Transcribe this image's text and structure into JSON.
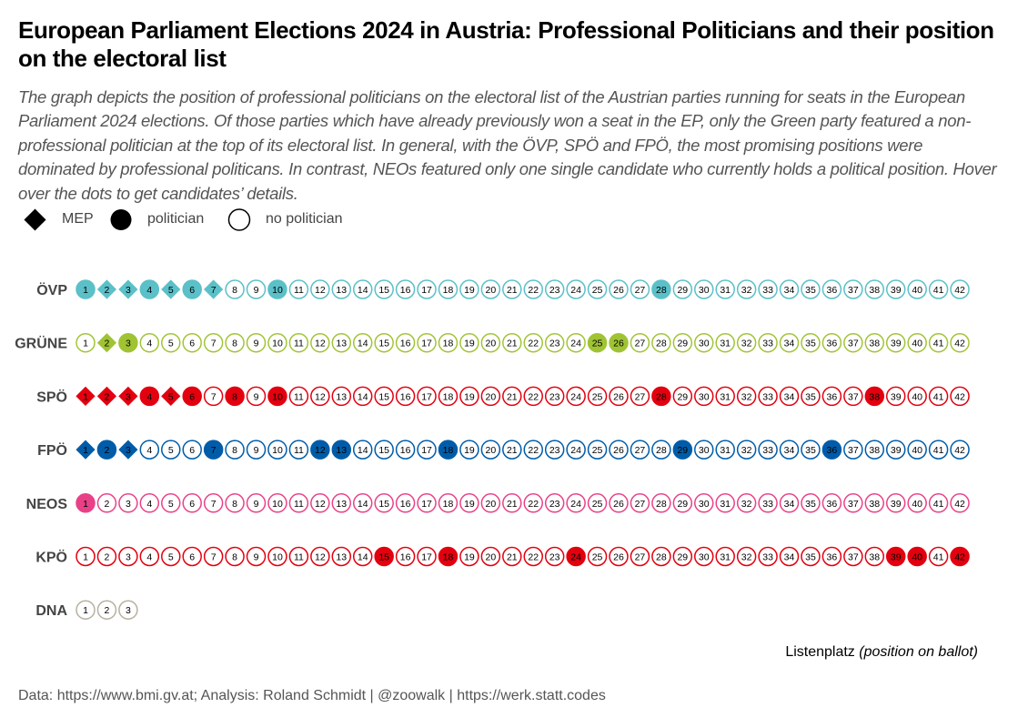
{
  "title": "European Parliament Elections 2024 in Austria: Professional Politicians and their position on the electoral list",
  "subtitle": "The graph depicts the position of professional politicians on the electoral list of the Austrian parties running for seats in the European Parliament 2024 elections. Of those parties which have already previously won a seat in the EP,  only the Green party featured a non-professional politician at the top of its electoral list. In general, with the ÖVP,  SPÖ and FPÖ, the most promising positions were dominated by professional politicans. In contrast, NEOs featured only one single candidate who currently holds a political position. Hover over the dots to get candidates’ details.",
  "legend": {
    "mep": "MEP",
    "politician": "politician",
    "no_politician": "no politician"
  },
  "xlabel": "Listenplatz ",
  "xlabel_italic": "(position on ballot)",
  "source": "Data: https://www.bmi.gv.at;  Analysis: Roland Schmidt | @zoowalk | https://werk.statt.codes",
  "chart_data": {
    "type": "scatter",
    "x_label": "Listenplatz (position on ballot)",
    "legend": [
      "MEP",
      "politician",
      "no politician"
    ],
    "series": [
      {
        "name": "ÖVP",
        "color": "#5bc0c8",
        "count": 42,
        "mep": [
          2,
          3,
          5,
          7
        ],
        "politician": [
          1,
          4,
          6,
          10,
          28
        ]
      },
      {
        "name": "GRÜNE",
        "color": "#a0c334",
        "count": 42,
        "mep": [
          2
        ],
        "politician": [
          3,
          25,
          26
        ]
      },
      {
        "name": "SPÖ",
        "color": "#e3000f",
        "count": 42,
        "mep": [
          1,
          2,
          3,
          5
        ],
        "politician": [
          4,
          6,
          8,
          10,
          28,
          38
        ]
      },
      {
        "name": "FPÖ",
        "color": "#005ca9",
        "count": 42,
        "mep": [
          1,
          3
        ],
        "politician": [
          2,
          7,
          12,
          13,
          18,
          29,
          36
        ]
      },
      {
        "name": "NEOS",
        "color": "#e84188",
        "count": 42,
        "mep": [],
        "politician": [
          1
        ]
      },
      {
        "name": "KPÖ",
        "color": "#e3000f",
        "count": 42,
        "mep": [],
        "politician": [
          15,
          18,
          24,
          39,
          40,
          42
        ]
      },
      {
        "name": "DNA",
        "color": "#b5b0a0",
        "count": 3,
        "mep": [],
        "politician": []
      }
    ]
  }
}
